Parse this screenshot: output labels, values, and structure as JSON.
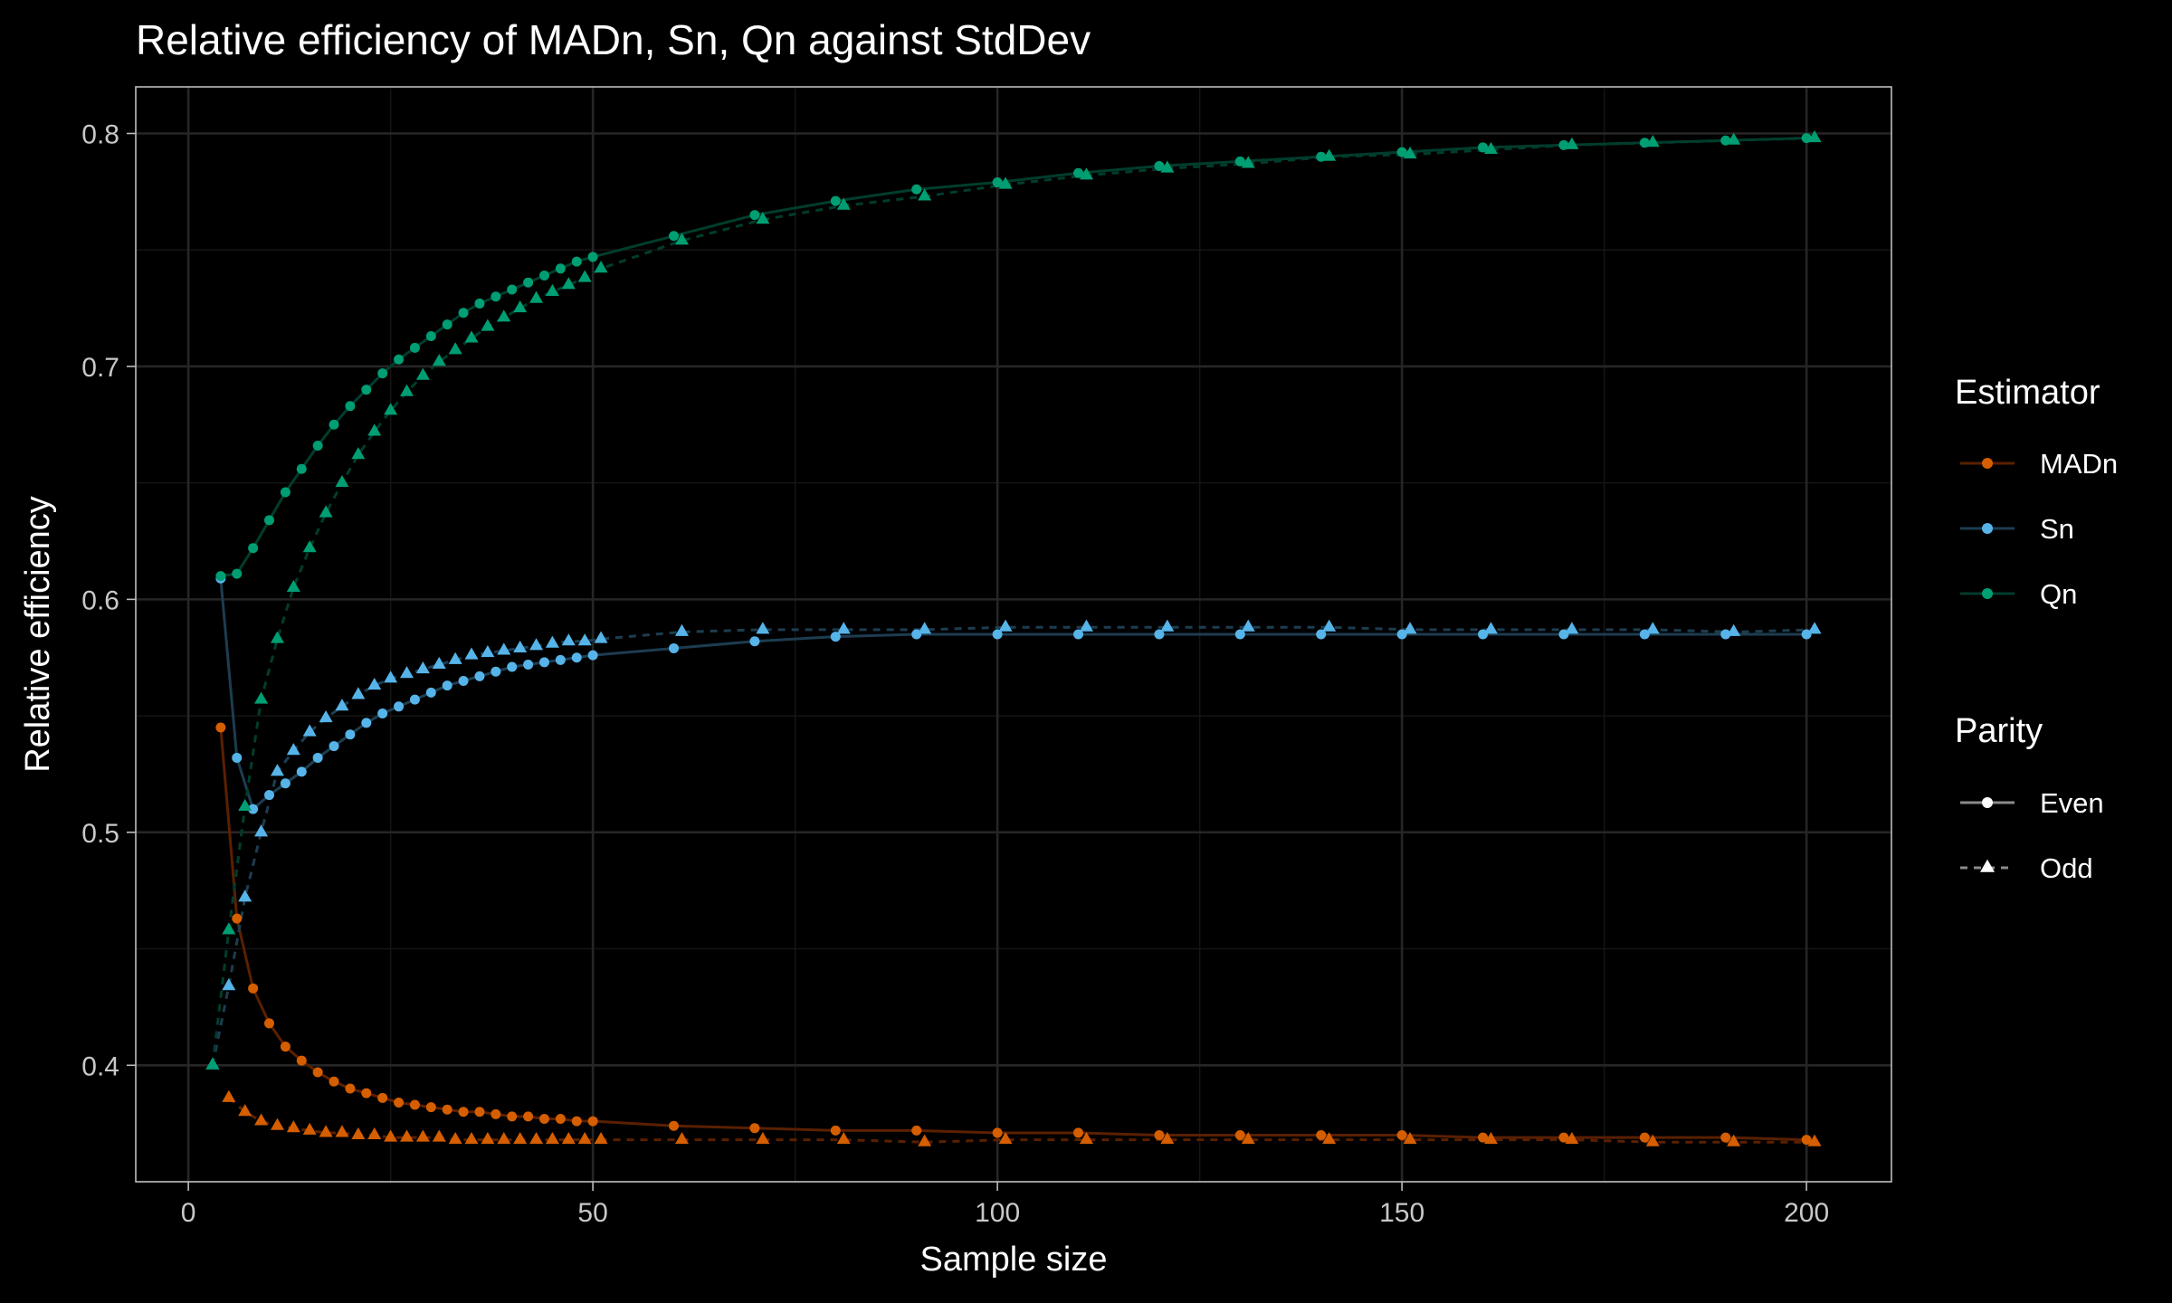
{
  "chart_data": {
    "type": "line",
    "title": "Relative efficiency of MADn, Sn, Qn against StdDev",
    "xlabel": "Sample size",
    "ylabel": "Relative efficiency",
    "xlim": [
      -6.5,
      210.5
    ],
    "ylim": [
      0.35,
      0.82
    ],
    "x_ticks": [
      0,
      50,
      100,
      150,
      200
    ],
    "x_tick_labels": [
      "0",
      "50",
      "100",
      "150",
      "200"
    ],
    "y_ticks": [
      0.4,
      0.5,
      0.6,
      0.7,
      0.8
    ],
    "y_tick_labels": [
      "0.4",
      "0.5",
      "0.6",
      "0.7",
      "0.8"
    ],
    "grid": true,
    "legend_position": "right",
    "legends": [
      {
        "title": "Estimator",
        "entries": [
          "MADn",
          "Sn",
          "Qn"
        ]
      },
      {
        "title": "Parity",
        "entries": [
          "Even",
          "Odd"
        ]
      }
    ],
    "colors": {
      "MADn": "#d55e00",
      "Sn": "#56b4e9",
      "Qn": "#009e73"
    },
    "line_colors": {
      "MADn": "#5a2000",
      "Sn": "#1d3d50",
      "Qn": "#003d2c"
    },
    "series": [
      {
        "name": "MADn",
        "parity": "Even",
        "x": [
          4,
          6,
          8,
          10,
          12,
          14,
          16,
          18,
          20,
          22,
          24,
          26,
          28,
          30,
          32,
          34,
          36,
          38,
          40,
          42,
          44,
          46,
          48,
          50,
          60,
          70,
          80,
          90,
          100,
          110,
          120,
          130,
          140,
          150,
          160,
          170,
          180,
          190,
          200
        ],
        "y": [
          0.545,
          0.463,
          0.433,
          0.418,
          0.408,
          0.402,
          0.397,
          0.393,
          0.39,
          0.388,
          0.386,
          0.384,
          0.383,
          0.382,
          0.381,
          0.38,
          0.38,
          0.379,
          0.378,
          0.378,
          0.377,
          0.377,
          0.376,
          0.376,
          0.374,
          0.373,
          0.372,
          0.372,
          0.371,
          0.371,
          0.37,
          0.37,
          0.37,
          0.37,
          0.369,
          0.369,
          0.369,
          0.369,
          0.368
        ]
      },
      {
        "name": "MADn",
        "parity": "Odd",
        "x": [
          5,
          7,
          9,
          11,
          13,
          15,
          17,
          19,
          21,
          23,
          25,
          27,
          29,
          31,
          33,
          35,
          37,
          39,
          41,
          43,
          45,
          47,
          49,
          51,
          61,
          71,
          81,
          91,
          101,
          111,
          121,
          131,
          141,
          151,
          161,
          171,
          181,
          191,
          201
        ],
        "y": [
          0.386,
          0.38,
          0.376,
          0.374,
          0.373,
          0.372,
          0.371,
          0.371,
          0.37,
          0.37,
          0.369,
          0.369,
          0.369,
          0.369,
          0.368,
          0.368,
          0.368,
          0.368,
          0.368,
          0.368,
          0.368,
          0.368,
          0.368,
          0.368,
          0.368,
          0.368,
          0.368,
          0.367,
          0.368,
          0.368,
          0.368,
          0.368,
          0.368,
          0.368,
          0.368,
          0.368,
          0.367,
          0.367,
          0.367
        ]
      },
      {
        "name": "Sn",
        "parity": "Even",
        "x": [
          4,
          6,
          8,
          10,
          12,
          14,
          16,
          18,
          20,
          22,
          24,
          26,
          28,
          30,
          32,
          34,
          36,
          38,
          40,
          42,
          44,
          46,
          48,
          50,
          60,
          70,
          80,
          90,
          100,
          110,
          120,
          130,
          140,
          150,
          160,
          170,
          180,
          190,
          200
        ],
        "y": [
          0.609,
          0.532,
          0.51,
          0.516,
          0.521,
          0.526,
          0.532,
          0.537,
          0.542,
          0.547,
          0.551,
          0.554,
          0.557,
          0.56,
          0.563,
          0.565,
          0.567,
          0.569,
          0.571,
          0.572,
          0.573,
          0.574,
          0.575,
          0.576,
          0.579,
          0.582,
          0.584,
          0.585,
          0.585,
          0.585,
          0.585,
          0.585,
          0.585,
          0.585,
          0.585,
          0.585,
          0.585,
          0.585,
          0.585
        ]
      },
      {
        "name": "Sn",
        "parity": "Odd",
        "x": [
          3,
          5,
          7,
          9,
          11,
          13,
          15,
          17,
          19,
          21,
          23,
          25,
          27,
          29,
          31,
          33,
          35,
          37,
          39,
          41,
          43,
          45,
          47,
          49,
          51,
          61,
          71,
          81,
          91,
          101,
          111,
          121,
          131,
          141,
          151,
          161,
          171,
          181,
          191,
          201
        ],
        "y": [
          0.4,
          0.434,
          0.472,
          0.5,
          0.526,
          0.535,
          0.543,
          0.549,
          0.554,
          0.559,
          0.563,
          0.566,
          0.568,
          0.57,
          0.572,
          0.574,
          0.576,
          0.577,
          0.578,
          0.579,
          0.58,
          0.581,
          0.582,
          0.582,
          0.583,
          0.586,
          0.587,
          0.587,
          0.587,
          0.588,
          0.588,
          0.588,
          0.588,
          0.588,
          0.587,
          0.587,
          0.587,
          0.587,
          0.586,
          0.587
        ]
      },
      {
        "name": "Qn",
        "parity": "Even",
        "x": [
          4,
          6,
          8,
          10,
          12,
          14,
          16,
          18,
          20,
          22,
          24,
          26,
          28,
          30,
          32,
          34,
          36,
          38,
          40,
          42,
          44,
          46,
          48,
          50,
          60,
          70,
          80,
          90,
          100,
          110,
          120,
          130,
          140,
          150,
          160,
          170,
          180,
          190,
          200
        ],
        "y": [
          0.61,
          0.611,
          0.622,
          0.634,
          0.646,
          0.656,
          0.666,
          0.675,
          0.683,
          0.69,
          0.697,
          0.703,
          0.708,
          0.713,
          0.718,
          0.723,
          0.727,
          0.73,
          0.733,
          0.736,
          0.739,
          0.742,
          0.745,
          0.747,
          0.756,
          0.765,
          0.771,
          0.776,
          0.779,
          0.783,
          0.786,
          0.788,
          0.79,
          0.792,
          0.794,
          0.795,
          0.796,
          0.797,
          0.798
        ]
      },
      {
        "name": "Qn",
        "parity": "Odd",
        "x": [
          3,
          5,
          7,
          9,
          11,
          13,
          15,
          17,
          19,
          21,
          23,
          25,
          27,
          29,
          31,
          33,
          35,
          37,
          39,
          41,
          43,
          45,
          47,
          49,
          51,
          61,
          71,
          81,
          91,
          101,
          111,
          121,
          131,
          141,
          151,
          161,
          171,
          181,
          191,
          201
        ],
        "y": [
          0.4,
          0.458,
          0.511,
          0.557,
          0.583,
          0.605,
          0.622,
          0.637,
          0.65,
          0.662,
          0.672,
          0.681,
          0.689,
          0.696,
          0.702,
          0.707,
          0.712,
          0.717,
          0.721,
          0.725,
          0.729,
          0.732,
          0.735,
          0.738,
          0.742,
          0.754,
          0.763,
          0.769,
          0.773,
          0.778,
          0.782,
          0.785,
          0.787,
          0.79,
          0.791,
          0.793,
          0.795,
          0.796,
          0.797,
          0.798
        ]
      }
    ]
  }
}
